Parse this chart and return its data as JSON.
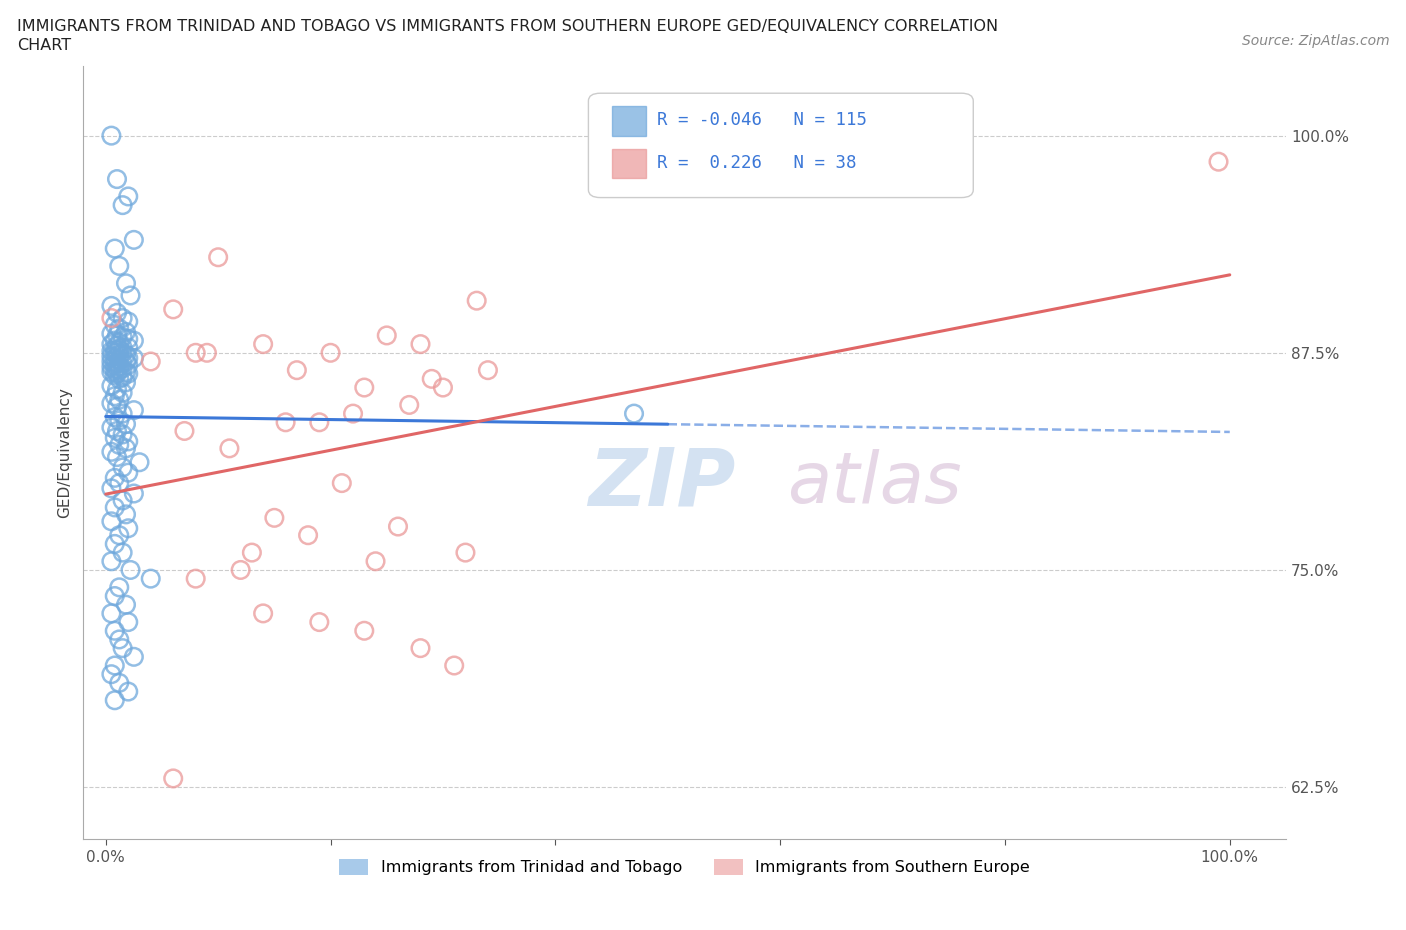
{
  "title_line1": "IMMIGRANTS FROM TRINIDAD AND TOBAGO VS IMMIGRANTS FROM SOUTHERN EUROPE GED/EQUIVALENCY CORRELATION",
  "title_line2": "CHART",
  "source_text": "Source: ZipAtlas.com",
  "ylabel": "GED/Equivalency",
  "xlim": [
    -0.02,
    1.05
  ],
  "ylim": [
    0.595,
    1.04
  ],
  "xticks": [
    0.0,
    0.2,
    0.4,
    0.6,
    0.8,
    1.0
  ],
  "xticklabels": [
    "0.0%",
    "",
    "",
    "",
    "",
    "100.0%"
  ],
  "yticks": [
    0.625,
    0.75,
    0.875,
    1.0
  ],
  "yticklabels": [
    "62.5%",
    "75.0%",
    "87.5%",
    "100.0%"
  ],
  "legend_labels": [
    "Immigrants from Trinidad and Tobago",
    "Immigrants from Southern Europe"
  ],
  "r1": -0.046,
  "n1": 115,
  "r2": 0.226,
  "n2": 38,
  "blue_color": "#6fa8dc",
  "pink_color": "#ea9999",
  "blue_line_color": "#3c78d8",
  "pink_line_color": "#e06666",
  "watermark_zip": "ZIP",
  "watermark_atlas": "atlas",
  "blue_scatter_x": [
    0.005,
    0.01,
    0.015,
    0.02,
    0.025,
    0.008,
    0.012,
    0.018,
    0.022,
    0.005,
    0.01,
    0.015,
    0.02,
    0.008,
    0.012,
    0.018,
    0.005,
    0.01,
    0.015,
    0.02,
    0.025,
    0.008,
    0.012,
    0.005,
    0.01,
    0.015,
    0.02,
    0.008,
    0.012,
    0.005,
    0.01,
    0.015,
    0.008,
    0.012,
    0.018,
    0.005,
    0.01,
    0.02,
    0.025,
    0.008,
    0.012,
    0.018,
    0.005,
    0.01,
    0.015,
    0.02,
    0.008,
    0.012,
    0.005,
    0.01,
    0.015,
    0.008,
    0.012,
    0.018,
    0.005,
    0.01,
    0.02,
    0.008,
    0.015,
    0.012,
    0.018,
    0.005,
    0.01,
    0.015,
    0.008,
    0.012,
    0.005,
    0.01,
    0.025,
    0.015,
    0.008,
    0.012,
    0.018,
    0.005,
    0.01,
    0.015,
    0.008,
    0.02,
    0.012,
    0.018,
    0.005,
    0.01,
    0.03,
    0.015,
    0.02,
    0.008,
    0.012,
    0.005,
    0.025,
    0.015,
    0.008,
    0.018,
    0.005,
    0.02,
    0.012,
    0.008,
    0.015,
    0.005,
    0.022,
    0.04,
    0.012,
    0.008,
    0.018,
    0.005,
    0.02,
    0.008,
    0.012,
    0.015,
    0.025,
    0.008,
    0.005,
    0.012,
    0.02,
    0.47,
    0.008
  ],
  "blue_scatter_y": [
    1.0,
    0.975,
    0.96,
    0.965,
    0.94,
    0.935,
    0.925,
    0.915,
    0.908,
    0.902,
    0.898,
    0.895,
    0.893,
    0.891,
    0.889,
    0.887,
    0.886,
    0.885,
    0.884,
    0.883,
    0.882,
    0.882,
    0.881,
    0.88,
    0.879,
    0.878,
    0.878,
    0.877,
    0.877,
    0.876,
    0.876,
    0.875,
    0.875,
    0.874,
    0.874,
    0.873,
    0.873,
    0.872,
    0.872,
    0.871,
    0.871,
    0.87,
    0.87,
    0.869,
    0.869,
    0.868,
    0.868,
    0.867,
    0.867,
    0.866,
    0.866,
    0.865,
    0.865,
    0.864,
    0.864,
    0.863,
    0.863,
    0.862,
    0.861,
    0.86,
    0.858,
    0.856,
    0.854,
    0.852,
    0.85,
    0.848,
    0.846,
    0.844,
    0.842,
    0.84,
    0.838,
    0.836,
    0.834,
    0.832,
    0.83,
    0.828,
    0.826,
    0.824,
    0.822,
    0.82,
    0.818,
    0.815,
    0.812,
    0.809,
    0.806,
    0.803,
    0.8,
    0.797,
    0.794,
    0.79,
    0.786,
    0.782,
    0.778,
    0.774,
    0.77,
    0.765,
    0.76,
    0.755,
    0.75,
    0.745,
    0.74,
    0.735,
    0.73,
    0.725,
    0.72,
    0.715,
    0.71,
    0.705,
    0.7,
    0.695,
    0.69,
    0.685,
    0.68,
    0.84,
    0.675
  ],
  "pink_scatter_x": [
    0.005,
    0.06,
    0.25,
    0.1,
    0.14,
    0.19,
    0.22,
    0.27,
    0.3,
    0.34,
    0.04,
    0.08,
    0.11,
    0.28,
    0.33,
    0.2,
    0.17,
    0.23,
    0.16,
    0.29,
    0.07,
    0.09,
    0.13,
    0.21,
    0.26,
    0.18,
    0.15,
    0.24,
    0.32,
    0.12,
    0.08,
    0.19,
    0.23,
    0.28,
    0.31,
    0.06,
    0.14,
    0.99
  ],
  "pink_scatter_y": [
    0.895,
    0.9,
    0.885,
    0.93,
    0.88,
    0.835,
    0.84,
    0.845,
    0.855,
    0.865,
    0.87,
    0.875,
    0.82,
    0.88,
    0.905,
    0.875,
    0.865,
    0.855,
    0.835,
    0.86,
    0.83,
    0.875,
    0.76,
    0.8,
    0.775,
    0.77,
    0.78,
    0.755,
    0.76,
    0.75,
    0.745,
    0.72,
    0.715,
    0.705,
    0.695,
    0.63,
    0.725,
    0.985
  ]
}
